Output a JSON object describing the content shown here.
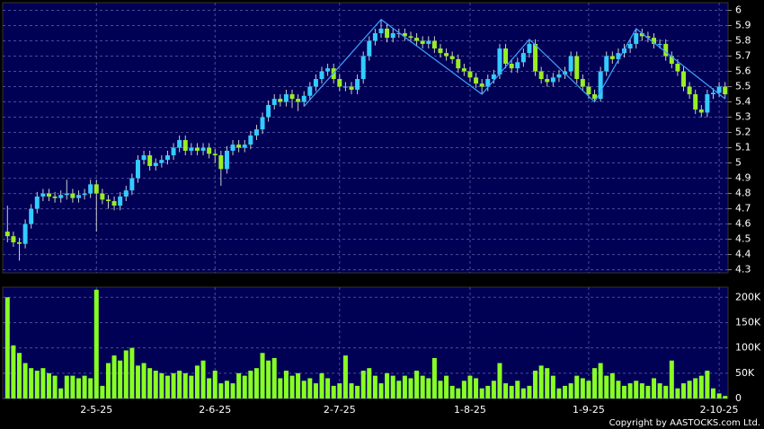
{
  "chart_data": {
    "type": "candlestick",
    "categories": [
      null,
      null,
      null,
      null,
      null,
      null,
      null,
      null,
      null,
      null,
      null,
      null,
      null,
      null,
      null,
      "2-5-25",
      null,
      null,
      null,
      null,
      null,
      null,
      null,
      null,
      null,
      null,
      null,
      null,
      null,
      null,
      null,
      null,
      null,
      null,
      null,
      "2-6-25",
      null,
      null,
      null,
      null,
      null,
      null,
      null,
      null,
      null,
      null,
      null,
      null,
      null,
      null,
      null,
      null,
      null,
      null,
      null,
      null,
      "2-7-25",
      null,
      null,
      null,
      null,
      null,
      null,
      null,
      null,
      null,
      null,
      null,
      null,
      null,
      null,
      null,
      null,
      null,
      null,
      null,
      null,
      null,
      "1-8-25",
      null,
      null,
      null,
      null,
      null,
      null,
      null,
      null,
      null,
      null,
      null,
      null,
      null,
      null,
      null,
      null,
      null,
      null,
      null,
      "1-9-25",
      null,
      null,
      null,
      null,
      null,
      null,
      null,
      null,
      null,
      null,
      null,
      null,
      null,
      null,
      null,
      null,
      null,
      null,
      null,
      null,
      null,
      "2-10-25",
      null
    ],
    "open": [
      4.55,
      4.52,
      4.48,
      4.47,
      4.6,
      4.7,
      4.78,
      4.8,
      4.78,
      4.77,
      4.79,
      4.8,
      4.77,
      4.79,
      4.8,
      4.86,
      4.8,
      4.76,
      4.75,
      4.72,
      4.78,
      4.82,
      4.9,
      5.02,
      5.05,
      4.98,
      5.0,
      5.02,
      5.05,
      5.1,
      5.15,
      5.08,
      5.1,
      5.08,
      5.1,
      5.06,
      5.05,
      4.96,
      5.08,
      5.12,
      5.1,
      5.12,
      5.18,
      5.22,
      5.3,
      5.38,
      5.42,
      5.4,
      5.45,
      5.42,
      5.4,
      5.44,
      5.5,
      5.55,
      5.6,
      5.62,
      5.55,
      5.5,
      5.5,
      5.48,
      5.55,
      5.7,
      5.8,
      5.85,
      5.88,
      5.82,
      5.85,
      5.85,
      5.83,
      5.82,
      5.8,
      5.78,
      5.8,
      5.75,
      5.72,
      5.7,
      5.68,
      5.62,
      5.6,
      5.56,
      5.52,
      5.5,
      5.55,
      5.58,
      5.75,
      5.65,
      5.62,
      5.66,
      5.72,
      5.78,
      5.6,
      5.55,
      5.53,
      5.56,
      5.58,
      5.6,
      5.7,
      5.55,
      5.5,
      5.45,
      5.42,
      5.6,
      5.7,
      5.68,
      5.72,
      5.75,
      5.78,
      5.85,
      5.83,
      5.82,
      5.78,
      5.78,
      5.7,
      5.65,
      5.6,
      5.5,
      5.45,
      5.35,
      5.33,
      5.45,
      5.46,
      5.5
    ],
    "high": [
      4.72,
      4.55,
      4.51,
      4.63,
      4.73,
      4.81,
      4.83,
      4.83,
      4.81,
      4.82,
      4.89,
      4.83,
      4.82,
      4.83,
      4.89,
      4.89,
      4.83,
      4.79,
      4.78,
      4.81,
      4.85,
      4.93,
      5.05,
      5.08,
      5.08,
      5.03,
      5.05,
      5.08,
      5.13,
      5.18,
      5.18,
      5.13,
      5.13,
      5.13,
      5.13,
      5.09,
      5.08,
      5.11,
      5.15,
      5.15,
      5.15,
      5.21,
      5.25,
      5.33,
      5.41,
      5.45,
      5.45,
      5.48,
      5.48,
      5.45,
      5.47,
      5.53,
      5.58,
      5.63,
      5.65,
      5.65,
      5.58,
      5.53,
      5.53,
      5.58,
      5.73,
      5.83,
      5.88,
      5.94,
      5.91,
      5.88,
      5.88,
      5.88,
      5.86,
      5.85,
      5.83,
      5.83,
      5.83,
      5.78,
      5.75,
      5.73,
      5.71,
      5.65,
      5.63,
      5.59,
      5.55,
      5.58,
      5.61,
      5.78,
      5.78,
      5.68,
      5.69,
      5.75,
      5.81,
      5.81,
      5.63,
      5.58,
      5.59,
      5.61,
      5.63,
      5.73,
      5.73,
      5.58,
      5.53,
      5.48,
      5.63,
      5.73,
      5.73,
      5.75,
      5.78,
      5.81,
      5.88,
      5.88,
      5.86,
      5.85,
      5.81,
      5.81,
      5.73,
      5.68,
      5.63,
      5.53,
      5.48,
      5.38,
      5.48,
      5.49,
      5.53,
      5.53
    ],
    "low": [
      4.48,
      4.45,
      4.36,
      4.44,
      4.57,
      4.67,
      4.75,
      4.75,
      4.74,
      4.74,
      4.76,
      4.74,
      4.74,
      4.76,
      4.77,
      4.55,
      4.73,
      4.7,
      4.69,
      4.69,
      4.75,
      4.79,
      4.87,
      4.99,
      4.95,
      4.95,
      4.97,
      4.99,
      5.02,
      5.07,
      5.05,
      5.05,
      5.05,
      5.05,
      5.03,
      5.0,
      4.85,
      4.93,
      5.05,
      5.07,
      5.07,
      5.09,
      5.15,
      5.19,
      5.27,
      5.35,
      5.37,
      5.37,
      5.36,
      5.34,
      5.37,
      5.41,
      5.47,
      5.52,
      5.57,
      5.52,
      5.47,
      5.47,
      5.45,
      5.45,
      5.52,
      5.67,
      5.77,
      5.82,
      5.79,
      5.79,
      5.82,
      5.8,
      5.79,
      5.77,
      5.75,
      5.75,
      5.72,
      5.69,
      5.67,
      5.65,
      5.59,
      5.57,
      5.53,
      5.49,
      5.45,
      5.47,
      5.52,
      5.55,
      5.62,
      5.59,
      5.59,
      5.63,
      5.69,
      5.57,
      5.52,
      5.5,
      5.5,
      5.53,
      5.55,
      5.57,
      5.52,
      5.47,
      5.42,
      5.4,
      5.4,
      5.57,
      5.65,
      5.65,
      5.69,
      5.72,
      5.75,
      5.8,
      5.79,
      5.75,
      5.75,
      5.67,
      5.62,
      5.57,
      5.47,
      5.42,
      5.32,
      5.3,
      5.3,
      5.42,
      5.43,
      5.42
    ],
    "close": [
      4.52,
      4.48,
      4.47,
      4.6,
      4.7,
      4.78,
      4.8,
      4.78,
      4.77,
      4.79,
      4.8,
      4.77,
      4.79,
      4.8,
      4.86,
      4.8,
      4.76,
      4.75,
      4.72,
      4.78,
      4.82,
      4.9,
      5.02,
      5.05,
      4.98,
      5.0,
      5.02,
      5.05,
      5.1,
      5.15,
      5.08,
      5.1,
      5.08,
      5.1,
      5.06,
      5.05,
      4.96,
      5.08,
      5.12,
      5.1,
      5.12,
      5.18,
      5.22,
      5.3,
      5.38,
      5.42,
      5.4,
      5.45,
      5.42,
      5.4,
      5.44,
      5.5,
      5.55,
      5.6,
      5.62,
      5.55,
      5.5,
      5.5,
      5.48,
      5.55,
      5.7,
      5.8,
      5.85,
      5.88,
      5.82,
      5.85,
      5.85,
      5.83,
      5.82,
      5.8,
      5.78,
      5.8,
      5.75,
      5.72,
      5.7,
      5.68,
      5.62,
      5.6,
      5.56,
      5.52,
      5.5,
      5.55,
      5.58,
      5.75,
      5.65,
      5.62,
      5.66,
      5.72,
      5.78,
      5.6,
      5.55,
      5.53,
      5.56,
      5.58,
      5.6,
      5.7,
      5.55,
      5.5,
      5.45,
      5.42,
      5.6,
      5.7,
      5.68,
      5.72,
      5.75,
      5.78,
      5.85,
      5.83,
      5.82,
      5.78,
      5.78,
      5.7,
      5.65,
      5.6,
      5.5,
      5.45,
      5.35,
      5.33,
      5.45,
      5.46,
      5.5,
      5.45
    ],
    "up_color": "#33ccff",
    "down_color": "#99ee22",
    "ylim": [
      4.28,
      6.05
    ],
    "yticks": [
      4.3,
      4.4,
      4.5,
      4.6,
      4.7,
      4.8,
      4.9,
      5,
      5.1,
      5.2,
      5.3,
      5.4,
      5.5,
      5.6,
      5.7,
      5.8,
      5.9,
      6
    ],
    "grid": true,
    "zigzag": {
      "color": "#3f9fff",
      "x": [
        50,
        63,
        80,
        88,
        99,
        106,
        121
      ],
      "values": [
        5.37,
        5.94,
        5.45,
        5.81,
        5.4,
        5.88,
        5.42
      ]
    },
    "volume": {
      "type": "bar",
      "color": "#88ff22",
      "values": [
        200000,
        105000,
        90000,
        70000,
        60000,
        55000,
        60000,
        50000,
        45000,
        20000,
        45000,
        45000,
        40000,
        45000,
        40000,
        215000,
        25000,
        70000,
        85000,
        75000,
        95000,
        100000,
        65000,
        70000,
        60000,
        55000,
        50000,
        45000,
        50000,
        55000,
        50000,
        45000,
        65000,
        75000,
        40000,
        55000,
        30000,
        35000,
        30000,
        50000,
        45000,
        55000,
        60000,
        90000,
        75000,
        80000,
        40000,
        55000,
        45000,
        50000,
        35000,
        40000,
        30000,
        50000,
        40000,
        25000,
        30000,
        85000,
        30000,
        25000,
        55000,
        60000,
        45000,
        30000,
        50000,
        45000,
        35000,
        45000,
        40000,
        55000,
        45000,
        40000,
        80000,
        35000,
        45000,
        25000,
        20000,
        35000,
        45000,
        40000,
        20000,
        25000,
        35000,
        70000,
        30000,
        25000,
        35000,
        20000,
        25000,
        55000,
        65000,
        60000,
        45000,
        20000,
        25000,
        30000,
        45000,
        40000,
        35000,
        60000,
        70000,
        45000,
        50000,
        35000,
        25000,
        30000,
        35000,
        30000,
        25000,
        40000,
        30000,
        25000,
        75000,
        20000,
        30000,
        35000,
        40000,
        45000,
        55000,
        20000,
        10000,
        5000
      ],
      "ylim": [
        0,
        220000
      ],
      "yticks": [
        0,
        {
          "value": 50000,
          "label": "50K"
        },
        {
          "value": 100000,
          "label": "100K"
        },
        {
          "value": 150000,
          "label": "150K"
        },
        {
          "value": 200000,
          "label": "200K"
        }
      ]
    }
  },
  "copyright": "Copyright by AASTOCKS.com Ltd."
}
